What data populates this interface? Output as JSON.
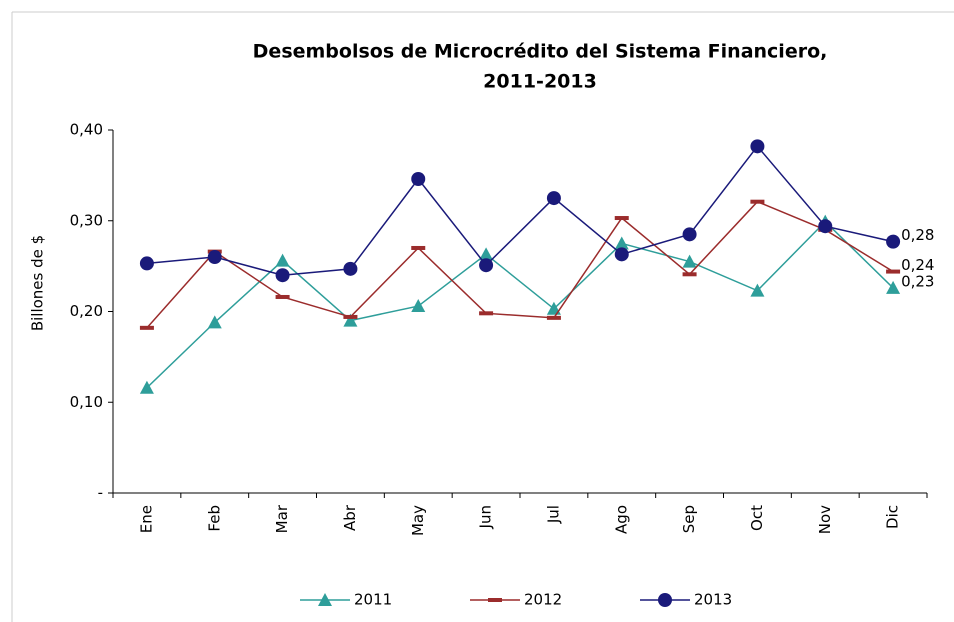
{
  "chart_data": {
    "type": "line",
    "title": [
      "Desembolsos de Microcrédito del Sistema Financiero,",
      "2011-2013"
    ],
    "y_label": "Billones de $",
    "categories": [
      "Ene",
      "Feb",
      "Mar",
      "Abr",
      "May",
      "Jun",
      "Jul",
      "Ago",
      "Sep",
      "Oct",
      "Nov",
      "Dic"
    ],
    "ylim": [
      0,
      0.4
    ],
    "yticks": [
      {
        "value": 0,
        "label": "-"
      },
      {
        "value": 0.1,
        "label": "0,10"
      },
      {
        "value": 0.2,
        "label": "0,20"
      },
      {
        "value": 0.3,
        "label": "0,30"
      },
      {
        "value": 0.4,
        "label": "0,40"
      }
    ],
    "grid": false,
    "legend": "bottom",
    "series": [
      {
        "name": "2011",
        "color": "#2e9e9a",
        "marker": "triangle",
        "values": [
          0.116,
          0.188,
          0.256,
          0.19,
          0.206,
          0.263,
          0.203,
          0.275,
          0.255,
          0.223,
          0.299,
          0.226
        ],
        "value_labels": [
          null,
          null,
          null,
          null,
          null,
          null,
          null,
          null,
          null,
          null,
          null,
          "0,23"
        ]
      },
      {
        "name": "2012",
        "color": "#9b2c2c",
        "marker": "dash",
        "values": [
          0.182,
          0.266,
          0.216,
          0.194,
          0.27,
          0.198,
          0.193,
          0.303,
          0.241,
          0.321,
          0.29,
          0.244
        ],
        "value_labels": [
          null,
          null,
          null,
          null,
          null,
          null,
          null,
          null,
          null,
          null,
          null,
          "0,24"
        ]
      },
      {
        "name": "2013",
        "color": "#1a1a7a",
        "marker": "circle",
        "values": [
          0.253,
          0.26,
          0.24,
          0.247,
          0.346,
          0.251,
          0.325,
          0.263,
          0.285,
          0.382,
          0.294,
          0.277
        ],
        "value_labels": [
          null,
          null,
          null,
          null,
          null,
          null,
          null,
          null,
          null,
          null,
          null,
          "0,28"
        ]
      }
    ]
  }
}
